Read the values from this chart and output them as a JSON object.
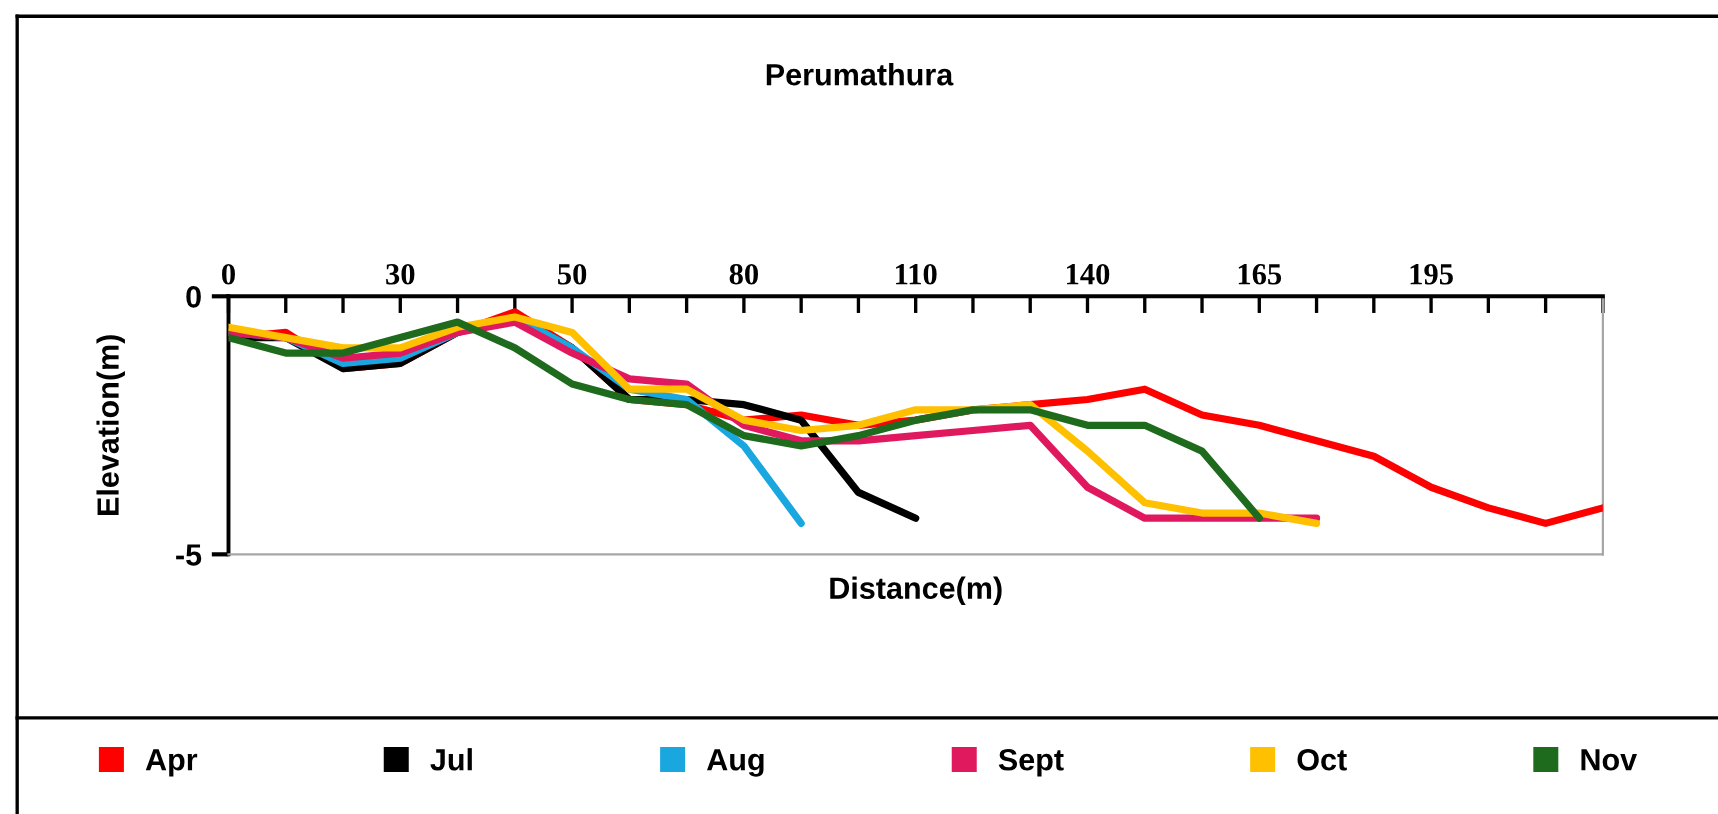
{
  "chart_data": {
    "type": "line",
    "title": "Perumathura",
    "xlabel": "Distance(m)",
    "ylabel": "Elevation(m)",
    "categories": [
      "0",
      null,
      null,
      "30",
      null,
      null,
      "50",
      null,
      null,
      "80",
      null,
      null,
      "110",
      null,
      null,
      "140",
      null,
      null,
      "165",
      null,
      null,
      "195",
      null,
      null,
      null
    ],
    "ylim": [
      -5,
      0
    ],
    "yticks": [
      -5,
      0
    ],
    "grid": false,
    "legend": "bottom",
    "marker": "none",
    "line_style": "solid",
    "series": [
      {
        "name": "Apr",
        "color": "#ff0000",
        "values": [
          -0.8,
          -0.7,
          -1.4,
          -1.3,
          -0.7,
          -0.3,
          -1.0,
          -2.0,
          -2.1,
          -2.4,
          -2.3,
          -2.5,
          -2.4,
          -2.2,
          -2.1,
          -2.0,
          -1.8,
          -2.3,
          -2.5,
          -2.8,
          -3.1,
          -3.7,
          -4.1,
          -4.4,
          -4.1
        ]
      },
      {
        "name": "Jul",
        "color": "#000000",
        "values": [
          -0.8,
          -0.8,
          -1.4,
          -1.3,
          -0.7,
          -0.4,
          -1.0,
          -2.0,
          -2.0,
          -2.1,
          -2.4,
          -3.8,
          -4.3,
          null,
          null,
          null,
          null,
          null,
          null,
          null,
          null,
          null,
          null,
          null,
          null
        ]
      },
      {
        "name": "Aug",
        "color": "#1aa7e0",
        "values": [
          -0.7,
          -0.8,
          -1.3,
          -1.2,
          -0.7,
          -0.4,
          -1.0,
          -1.8,
          -2.0,
          -2.9,
          -4.4,
          null,
          null,
          null,
          null,
          null,
          null,
          null,
          null,
          null,
          null,
          null,
          null,
          null,
          null
        ]
      },
      {
        "name": "Sept",
        "color": "#e0195f",
        "values": [
          -0.7,
          -0.8,
          -1.2,
          -1.1,
          -0.7,
          -0.5,
          -1.1,
          -1.6,
          -1.7,
          -2.5,
          -2.8,
          -2.8,
          -2.7,
          -2.6,
          -2.5,
          -3.7,
          -4.3,
          -4.3,
          -4.3,
          -4.3,
          null,
          null,
          null,
          null,
          null
        ]
      },
      {
        "name": "Oct",
        "color": "#ffc000",
        "values": [
          -0.6,
          -0.8,
          -1.0,
          -1.0,
          -0.6,
          -0.4,
          -0.7,
          -1.8,
          -1.8,
          -2.4,
          -2.6,
          -2.5,
          -2.2,
          -2.2,
          -2.1,
          -3.0,
          -4.0,
          -4.2,
          -4.2,
          -4.4,
          null,
          null,
          null,
          null,
          null
        ]
      },
      {
        "name": "Nov",
        "color": "#1e6b1e",
        "values": [
          -0.8,
          -1.1,
          -1.1,
          -0.8,
          -0.5,
          -1.0,
          -1.7,
          -2.0,
          -2.1,
          -2.7,
          -2.9,
          -2.7,
          -2.4,
          -2.2,
          -2.2,
          -2.5,
          -2.5,
          -3.0,
          -4.3,
          null,
          null,
          null,
          null,
          null,
          null
        ]
      }
    ]
  }
}
